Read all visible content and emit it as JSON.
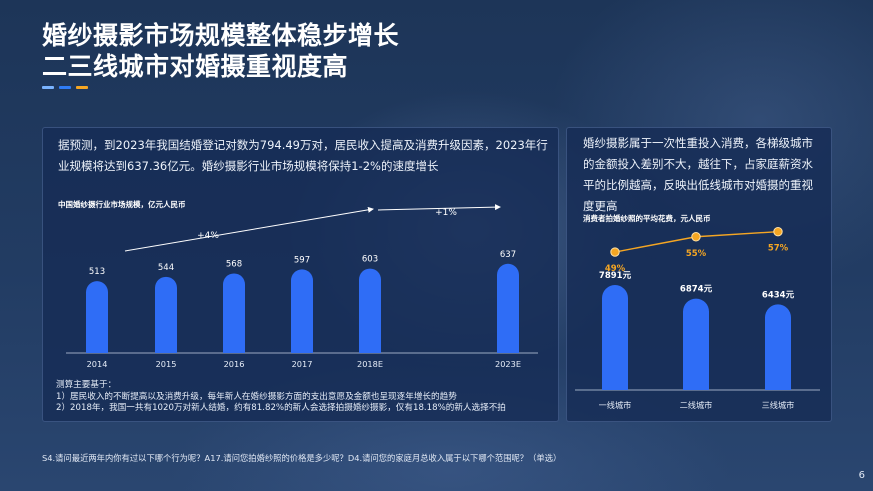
{
  "title_line1": "婚纱摄影市场规模整体稳步增长",
  "title_line2": "二三线城市对婚摄重视度高",
  "accent_colors": [
    "#7ab3ff",
    "#2f7cf6",
    "#f5a623"
  ],
  "left_panel": {
    "intro": "据预测，到2023年我国结婚登记对数为794.49万对，居民收入提高及消费升级因素，2023年行业规模将达到637.36亿元。婚纱摄影行业市场规模将保持1-2%的速度增长",
    "notes_title": "测算主要基于：",
    "notes": [
      "1）居民收入的不断提高以及消费升级，每年新人在婚纱摄影方面的支出意愿及金额也呈现逐年增长的趋势",
      "2）2018年，我国一共有1020万对新人结婚，约有81.82%的新人会选择拍摄婚纱摄影，仅有18.18%的新人选择不拍"
    ]
  },
  "right_panel": {
    "intro": "婚纱摄影属于一次性重投入消费，各梯级城市的金额投入差别不大，越往下，占家庭薪资水平的比例越高，反映出低线城市对婚摄的重视度更高"
  },
  "footnote": "S4.请问最近两年内你有过以下哪个行为呢？A17.请问您拍婚纱照的价格是多少呢？D4.请问您的家庭月总收入属于以下哪个范围呢？（单选）",
  "page_number": "6",
  "colors": {
    "bar": "#2f6df6",
    "line": "#f5a623",
    "text": "#ffffff"
  },
  "chart_data": [
    {
      "type": "bar",
      "title": "中国婚纱摄行业市场规模，亿元人民币",
      "categories": [
        "2014",
        "2015",
        "2016",
        "2017",
        "2018E",
        "2023E"
      ],
      "values": [
        513,
        544,
        568,
        597,
        603,
        637
      ],
      "annotations": [
        "+4%",
        "+1%"
      ]
    },
    {
      "type": "bar",
      "title": "消费者拍婚纱照的平均花费，元人民币",
      "categories": [
        "一线城市",
        "二线城市",
        "三线城市"
      ],
      "values": [
        7891,
        6874,
        6434
      ],
      "value_labels": [
        "7891元",
        "6874元",
        "6434元"
      ],
      "line_series": {
        "values": [
          49,
          55,
          57
        ],
        "labels": [
          "49%",
          "55%",
          "57%"
        ]
      }
    }
  ]
}
